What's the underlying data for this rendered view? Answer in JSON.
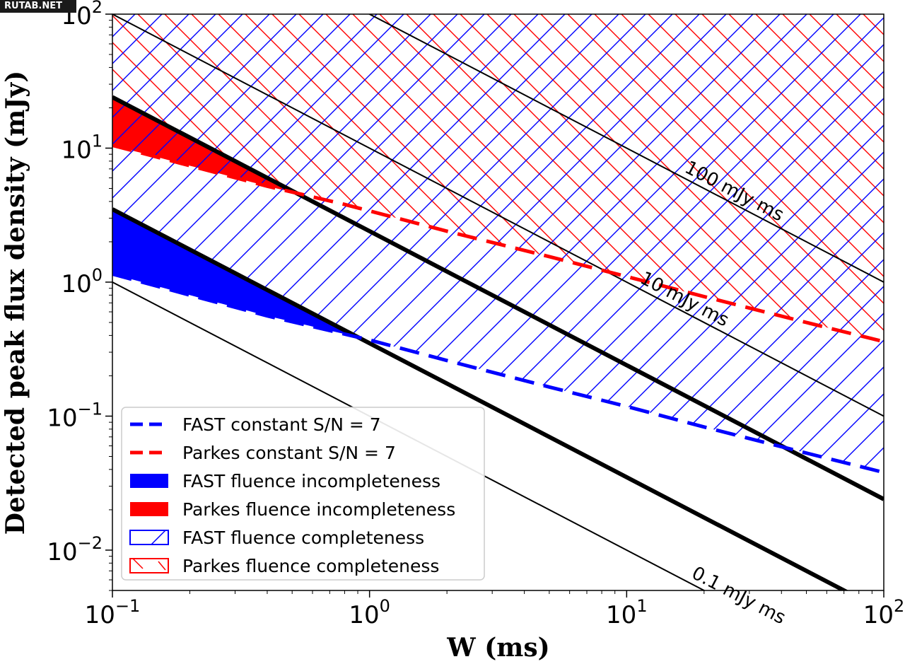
{
  "watermark": "RUTAB.NET",
  "chart_data": {
    "type": "line",
    "xlabel": "W (ms)",
    "ylabel": "Detected peak flux density (mJy)",
    "xscale": "log",
    "yscale": "log",
    "xlim": [
      0.1,
      100
    ],
    "ylim": [
      0.005,
      100
    ],
    "grid": false,
    "legend_position": "lower-left",
    "x_ticks": [
      {
        "value": 0.1,
        "base": "10",
        "exp": "−1"
      },
      {
        "value": 1,
        "base": "10",
        "exp": "0"
      },
      {
        "value": 10,
        "base": "10",
        "exp": "1"
      },
      {
        "value": 100,
        "base": "10",
        "exp": "2"
      }
    ],
    "y_ticks": [
      {
        "value": 0.01,
        "base": "10",
        "exp": "−2"
      },
      {
        "value": 0.1,
        "base": "10",
        "exp": "−1"
      },
      {
        "value": 1,
        "base": "10",
        "exp": "0"
      },
      {
        "value": 10,
        "base": "10",
        "exp": "1"
      },
      {
        "value": 100,
        "base": "10",
        "exp": "2"
      }
    ],
    "iso_fluence_lines": [
      {
        "fluence": 0.1,
        "label": "0.1 mJy ms",
        "label_at_w": 26
      },
      {
        "fluence": 10,
        "label": "10 mJy ms",
        "label_at_w": 16
      },
      {
        "fluence": 100,
        "label": "100 mJy ms",
        "label_at_w": 25
      }
    ],
    "completeness_lines": [
      {
        "fluence": 0.35,
        "color": "#000000"
      },
      {
        "fluence": 2.4,
        "color": "#000000"
      }
    ],
    "series": [
      {
        "name": "FAST constant S/N = 7",
        "style": "dashed",
        "color": "#0000ff",
        "x": [
          0.1,
          0.2,
          0.4,
          0.8,
          1,
          2,
          5,
          10,
          20,
          50,
          100
        ],
        "y": [
          1.15,
          0.8,
          0.56,
          0.41,
          0.37,
          0.26,
          0.165,
          0.118,
          0.083,
          0.053,
          0.038
        ]
      },
      {
        "name": "Parkes constant S/N = 7",
        "style": "dashed",
        "color": "#ff0000",
        "x": [
          0.1,
          0.2,
          0.4,
          0.8,
          1,
          2,
          5,
          10,
          20,
          50,
          100
        ],
        "y": [
          10.5,
          7.4,
          5.2,
          3.8,
          3.4,
          2.4,
          1.55,
          1.1,
          0.78,
          0.5,
          0.36
        ]
      }
    ],
    "legend": [
      {
        "label": "FAST constant S/N = 7",
        "kind": "dashed",
        "color": "#0000ff"
      },
      {
        "label": "Parkes constant S/N = 7",
        "kind": "dashed",
        "color": "#ff0000"
      },
      {
        "label": "FAST fluence incompleteness",
        "kind": "fill",
        "color": "#0000ff"
      },
      {
        "label": "Parkes fluence incompleteness",
        "kind": "fill",
        "color": "#ff0000"
      },
      {
        "label": "FAST fluence completeness",
        "kind": "hatch",
        "color": "#0000ff"
      },
      {
        "label": "Parkes fluence completeness",
        "kind": "hatch",
        "color": "#ff0000"
      }
    ]
  }
}
